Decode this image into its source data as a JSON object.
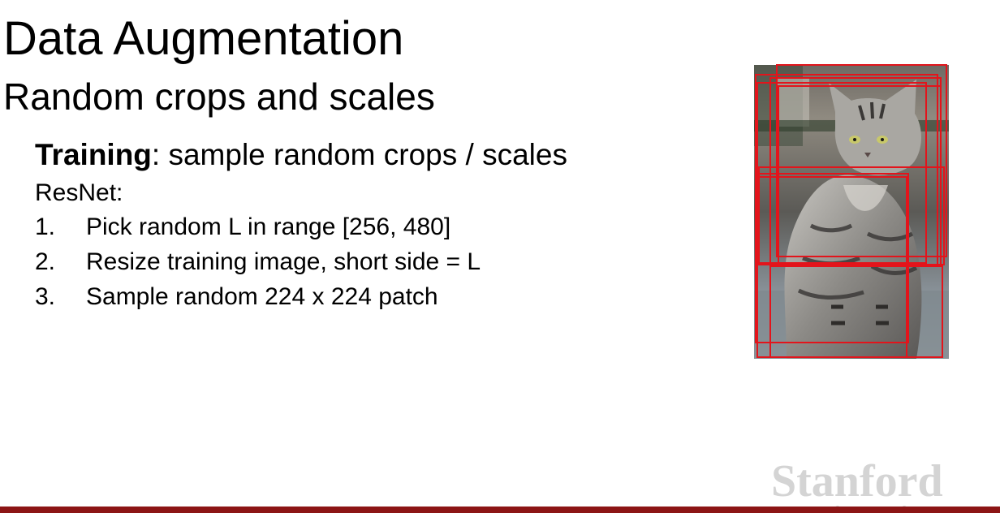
{
  "slide": {
    "title": "Data Augmentation",
    "subtitle": "Random crops and scales",
    "training_bold": "Training",
    "training_rest": ": sample random crops / scales",
    "resnet_label": "ResNet:",
    "steps": [
      {
        "num": "1.",
        "text": "Pick random L in range [256, 480]"
      },
      {
        "num": "2.",
        "text": "Resize training image, short side = L"
      },
      {
        "num": "3.",
        "text": "Sample random 224 x 224 patch"
      }
    ]
  },
  "logo": {
    "name": "Stanford",
    "sub": "University"
  },
  "colors": {
    "crop_box": "#e3141b",
    "footer": "#8c1515"
  },
  "figure": {
    "subject": "cat-photo",
    "crop_box_count": 9
  }
}
